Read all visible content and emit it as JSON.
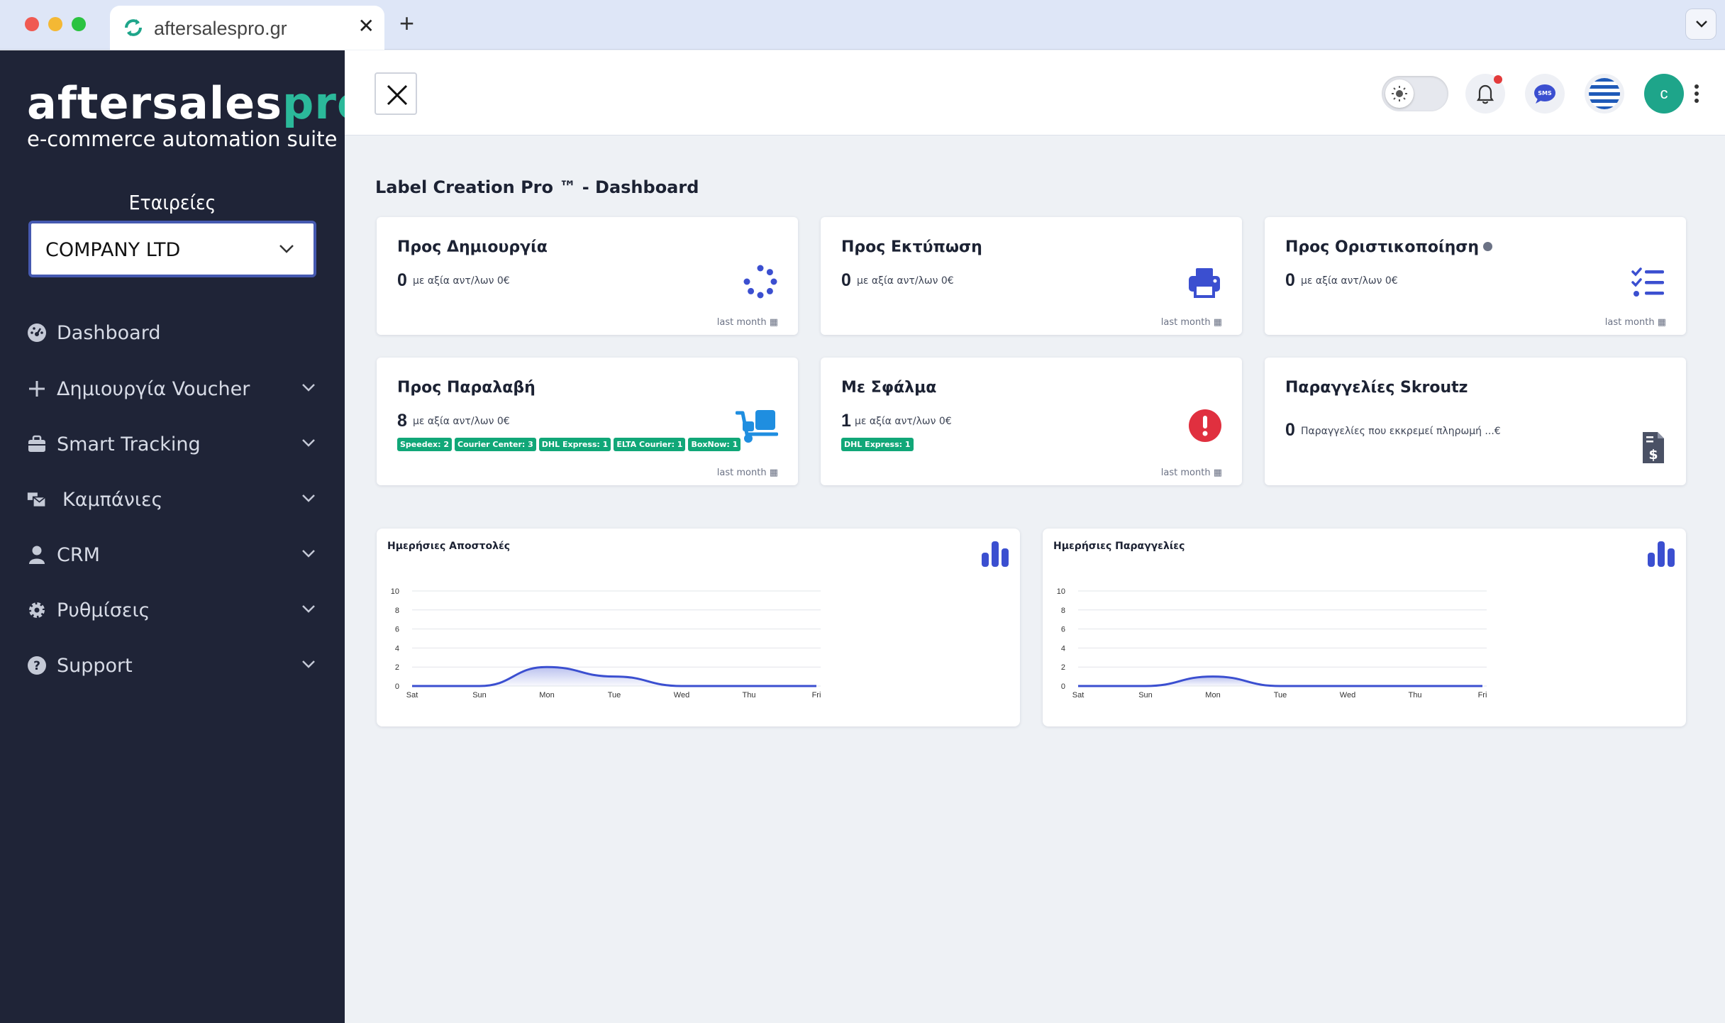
{
  "browser": {
    "tab_title": "aftersalespro.gr",
    "close_tab": "✕",
    "new_tab": "+"
  },
  "sidebar": {
    "logo_main": "aftersales",
    "logo_accent": "pro",
    "logo_mark": "®",
    "tagline": "e-commerce automation suite",
    "companies_label": "Εταιρείες",
    "company_selected": "COMPANY LTD",
    "items": [
      {
        "label": "Dashboard",
        "icon": "dashboard-gauge-icon",
        "has_children": false
      },
      {
        "label": "Δημιουργία Voucher",
        "icon": "plus-icon",
        "has_children": true
      },
      {
        "label": "Smart Tracking",
        "icon": "briefcase-icon",
        "has_children": true
      },
      {
        "label": "Καμπάνιες",
        "icon": "mail-bulk-icon",
        "has_children": true
      },
      {
        "label": "CRM",
        "icon": "user-icon",
        "has_children": true
      },
      {
        "label": "Ρυθμίσεις",
        "icon": "gear-icon",
        "has_children": true
      },
      {
        "label": "Support",
        "icon": "question-circle-icon",
        "has_children": true
      }
    ]
  },
  "topbar": {
    "avatar_initial": "c",
    "sms_label": "SMS"
  },
  "page_title": "Label Creation Pro ™ - Dashboard",
  "cards": [
    {
      "title": "Προς Δημιουργία",
      "count": "0",
      "sub": "με αξία αντ/λων 0€",
      "footer": "last month",
      "icon": "spinner-icon",
      "icon_color": "#3b4fd0"
    },
    {
      "title": "Προς Εκτύπωση",
      "count": "0",
      "sub": "με αξία αντ/λων 0€",
      "footer": "last month",
      "icon": "printer-icon",
      "icon_color": "#3b4fd0"
    },
    {
      "title": "Προς Οριστικοποίηση",
      "count": "0",
      "sub": "με αξία αντ/λων 0€",
      "footer": "last month",
      "icon": "checklist-icon",
      "icon_color": "#3b4fd0"
    },
    {
      "title": "Προς Παραλαβή",
      "count": "8",
      "sub": "με αξία αντ/λων 0€",
      "footer": "last month",
      "icon": "dolly-icon",
      "icon_color": "#1f8ee0",
      "badges": [
        "Speedex: 2",
        "Courier Center: 3",
        "DHL Express: 1",
        "ELTA Courier: 1",
        "BoxNow: 1"
      ]
    },
    {
      "title": "Με Σφάλμα",
      "count": "1",
      "sub": "με αξία αντ/λων 0€",
      "footer": "last month",
      "icon": "error-icon",
      "icon_color": "#e0303f",
      "badges": [
        "DHL Express: 1"
      ]
    },
    {
      "title": "Παραγγελίες Skroutz",
      "count": "0",
      "sub": "Παραγγελίες που εκκρεμεί πληρωμή ...€",
      "icon": "invoice-dollar-icon",
      "icon_color": "#4a5165"
    }
  ],
  "chart_data": [
    {
      "type": "area",
      "title": "Ημερήσιες Αποστολές",
      "categories": [
        "Sat",
        "Sun",
        "Mon",
        "Tue",
        "Wed",
        "Thu",
        "Fri"
      ],
      "values": [
        0,
        0,
        2,
        1,
        0,
        0,
        0
      ],
      "y_ticks": [
        0,
        2,
        4,
        6,
        8,
        10
      ],
      "ylim": [
        0,
        10
      ],
      "color": "#3b4fd0",
      "grid": true
    },
    {
      "type": "area",
      "title": "Ημερήσιες Παραγγελίες",
      "categories": [
        "Sat",
        "Sun",
        "Mon",
        "Tue",
        "Wed",
        "Thu",
        "Fri"
      ],
      "values": [
        0,
        0,
        1,
        0,
        0,
        0,
        0
      ],
      "y_ticks": [
        0,
        2,
        4,
        6,
        8,
        10
      ],
      "ylim": [
        0,
        10
      ],
      "color": "#3b4fd0",
      "grid": true
    }
  ]
}
